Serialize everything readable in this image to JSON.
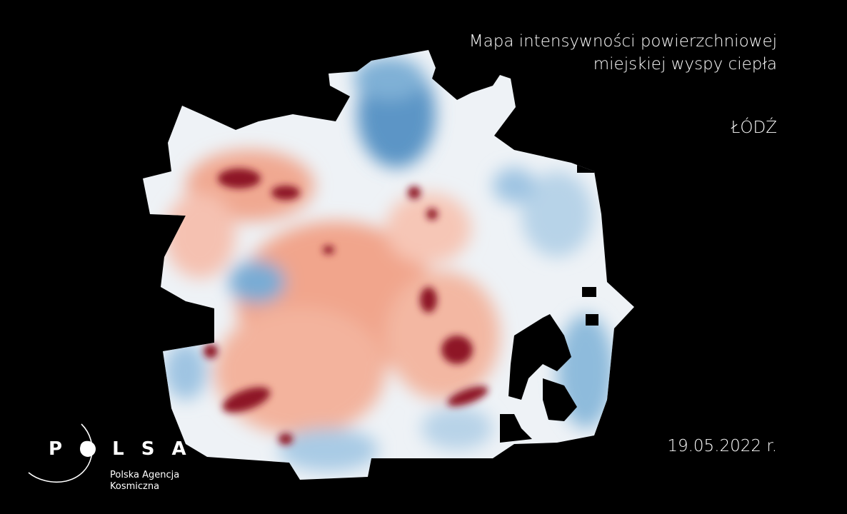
{
  "title": {
    "line1": "Mapa intensywności powierzchniowej",
    "line2": "miejskiej wyspy ciepła"
  },
  "city": "ŁÓDŹ",
  "date": "19.05.2022 r.",
  "logo": {
    "wordmark": "POLSA",
    "agency_line1": "Polska Agencja",
    "agency_line2": "Kosmiczna"
  },
  "colors": {
    "background": "#000000",
    "cool": "#2f6fae",
    "neutral": "#f4f6f8",
    "warm": "#e8826a",
    "hot": "#7a0a1a"
  }
}
